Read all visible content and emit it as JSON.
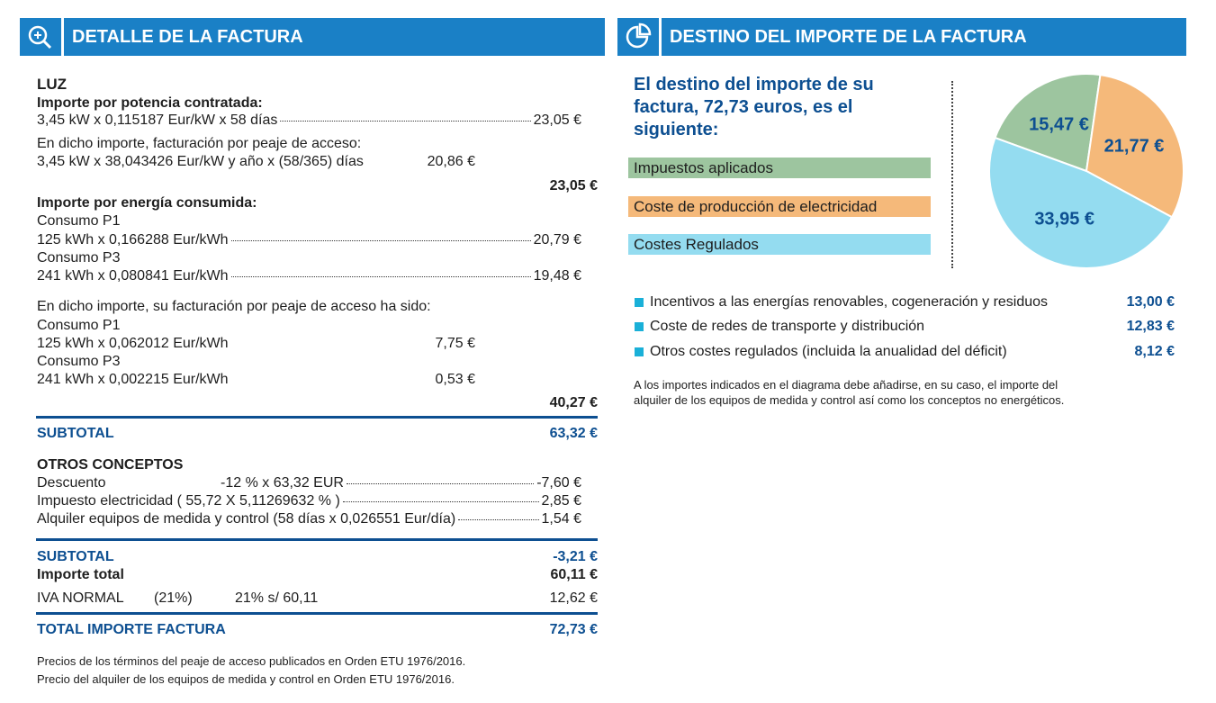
{
  "detalle": {
    "title": "DETALLE DE LA FACTURA",
    "luz": "LUZ",
    "potencia": {
      "heading": "Importe por potencia contratada:",
      "line": "3,45 kW x 0,115187 Eur/kW x 58 días",
      "amount": "23,05 €",
      "peaje_heading": "En dicho importe, facturación por peaje de acceso:",
      "peaje_line": "3,45 kW x 38,043426 Eur/kW y año x (58/365) días",
      "peaje_amount": "20,86 €",
      "total": "23,05 €"
    },
    "energia": {
      "heading": "Importe por energía consumida:",
      "p1_label": "Consumo P1",
      "p1_line": "125 kWh x 0,166288 Eur/kWh",
      "p1_amount": "20,79 €",
      "p3_label": "Consumo P3",
      "p3_line": "241 kWh x 0,080841 Eur/kWh",
      "p3_amount": "19,48 €",
      "peaje_heading": "En dicho importe, su facturación por peaje de acceso ha sido:",
      "peaje_p1_label": "Consumo P1",
      "peaje_p1_line": "125 kWh x 0,062012 Eur/kWh",
      "peaje_p1_amount": "7,75 €",
      "peaje_p3_label": "Consumo P3",
      "peaje_p3_line": "241 kWh x 0,002215 Eur/kWh",
      "peaje_p3_amount": "0,53 €",
      "total": "40,27 €"
    },
    "subtotal1": {
      "label": "SUBTOTAL",
      "amount": "63,32 €"
    },
    "otros": {
      "heading": "OTROS CONCEPTOS",
      "descuento_label": "Descuento",
      "descuento_detail": "-12 % x 63,32 EUR",
      "descuento_amount": "-7,60 €",
      "impuesto_label": "Impuesto electricidad ( 55,72 X 5,11269632 % )",
      "impuesto_amount": "2,85 €",
      "alquiler_label": "Alquiler equipos de medida y control (58 días x 0,026551 Eur/día)",
      "alquiler_amount": "1,54 €"
    },
    "subtotal2": {
      "label": "SUBTOTAL",
      "amount": "-3,21 €"
    },
    "importe_total": {
      "label": "Importe total",
      "amount": "60,11 €"
    },
    "iva": {
      "label": "IVA NORMAL",
      "rate": "(21%)",
      "base": "21% s/ 60,11",
      "amount": "12,62 €"
    },
    "total": {
      "label": "TOTAL IMPORTE FACTURA",
      "amount": "72,73 €"
    },
    "notes": [
      "Precios de los términos del peaje de acceso publicados en Orden ETU 1976/2016.",
      "Precio del alquiler de los equipos de medida y control en Orden ETU 1976/2016."
    ]
  },
  "destino": {
    "title": "DESTINO DEL IMPORTE DE LA FACTURA",
    "intro": [
      "El destino del importe de su",
      "factura, 72,73 euros, es el",
      "siguiente:"
    ],
    "items": [
      {
        "label": "Incentivos a las energías renovables, cogeneración y residuos",
        "amount": "13,00 €"
      },
      {
        "label": "Coste de redes de transporte y distribución",
        "amount": "12,83 €"
      },
      {
        "label": "Otros costes regulados (incluida la anualidad del déficit)",
        "amount": "8,12 €"
      }
    ],
    "note": [
      "A los importes indicados en el diagrama debe añadirse, en su caso, el importe del",
      "alquiler de los equipos de medida y control así como los conceptos no energéticos."
    ]
  },
  "chart_data": {
    "type": "pie",
    "categories": [
      "Impuestos aplicados",
      "Coste de producción de electricidad",
      "Costes Regulados"
    ],
    "values": [
      15.47,
      21.77,
      33.95
    ],
    "value_labels": [
      "15,47 €",
      "21,77 €",
      "33,95 €"
    ],
    "colors": [
      "#9dc59f",
      "#f5b97a",
      "#94dcf0"
    ]
  }
}
